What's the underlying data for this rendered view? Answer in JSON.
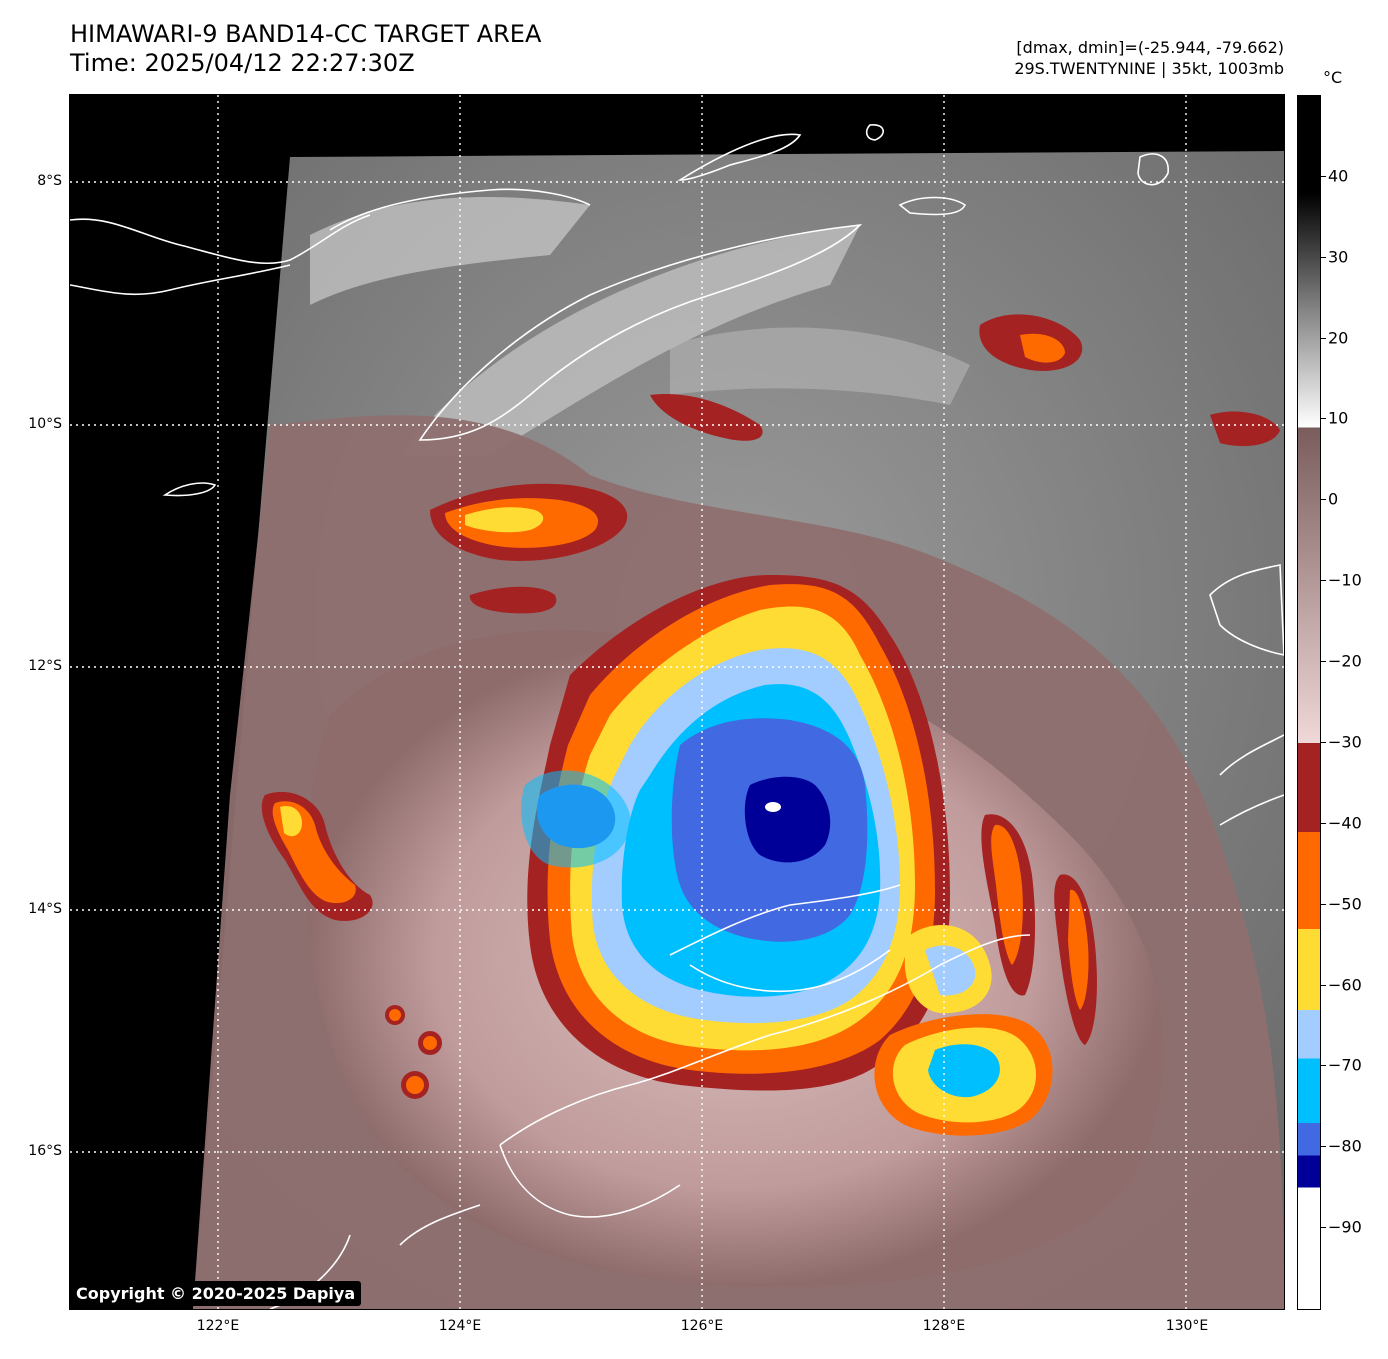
{
  "header": {
    "title_line1": "HIMAWARI-9 BAND14-CC TARGET AREA",
    "title_line2": "Time: 2025/04/12 22:27:30Z",
    "dmax_dmin": "[dmax, dmin]=(-25.944, -79.662)",
    "storm_info": "29S.TWENTYNINE | 35kt, 1003mb"
  },
  "axes": {
    "lat_labels": [
      "8°S",
      "10°S",
      "12°S",
      "14°S",
      "16°S"
    ],
    "lon_labels": [
      "122°E",
      "124°E",
      "126°E",
      "128°E",
      "130°E"
    ]
  },
  "colorbar": {
    "unit": "°C",
    "tick_labels": [
      "40",
      "30",
      "20",
      "10",
      "0",
      "−10",
      "−20",
      "−30",
      "−40",
      "−50",
      "−60",
      "−70",
      "−80",
      "−90"
    ],
    "range_c": [
      -100,
      50
    ],
    "colors": {
      "warm_top": "#000000",
      "warm_mid": "#808080",
      "warm_bottom": "#ffffff",
      "brown_top": "#7a5c5c",
      "brown_bottom": "#f0d8d8",
      "dark_red": "#a52222",
      "orange": "#ff6a00",
      "yellow": "#ffdc33",
      "light_blue": "#a3ccff",
      "cyan_blue": "#00bfff",
      "royal_blue": "#4169e1",
      "navy": "#000099",
      "cold_white": "#ffffff"
    }
  },
  "copyright": "Copyright © 2020-2025 Dapiya"
}
